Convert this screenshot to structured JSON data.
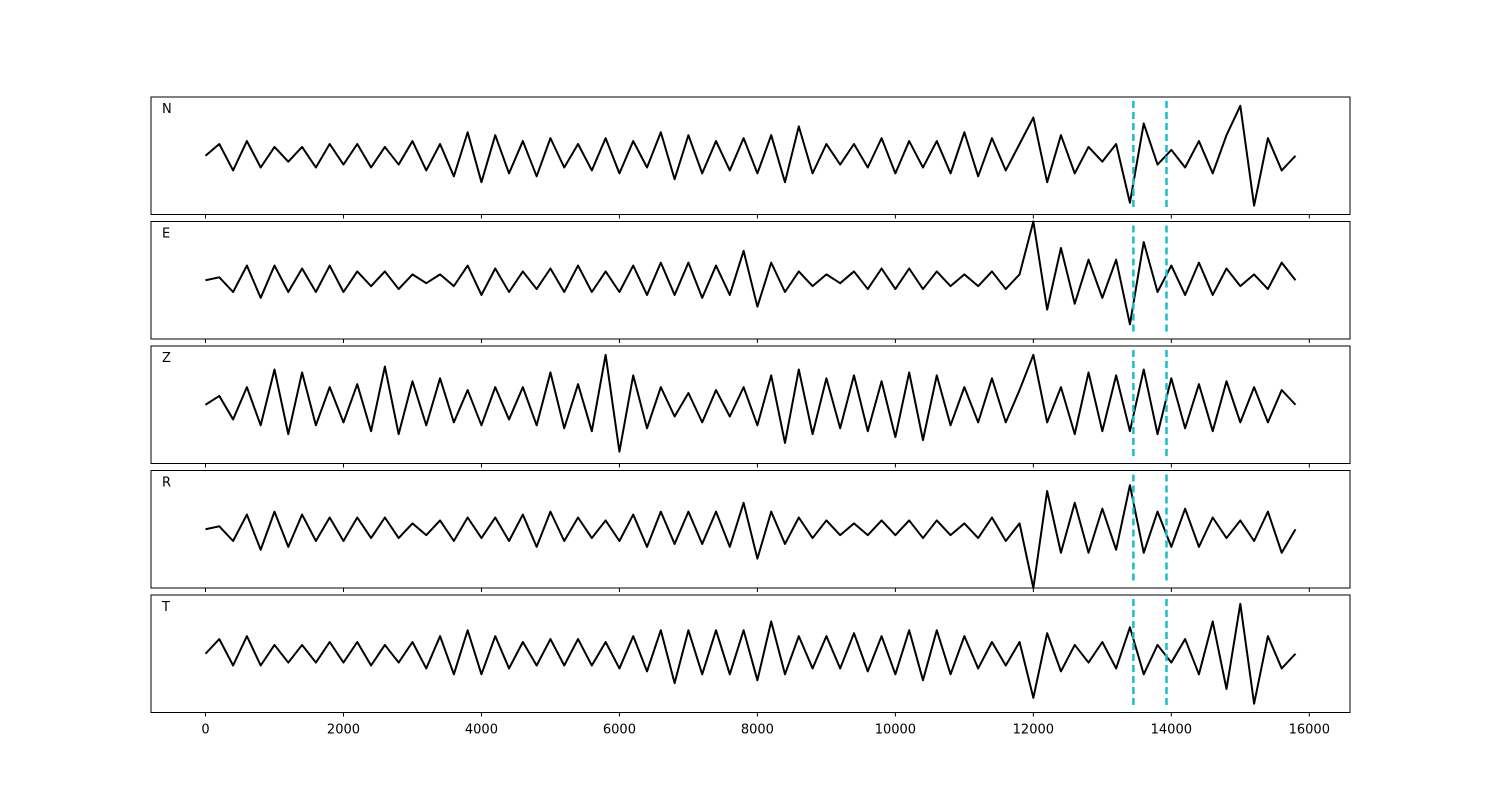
{
  "chart_data": {
    "type": "line",
    "layout": "stacked",
    "x": [
      0,
      200,
      400,
      600,
      800,
      1000,
      1200,
      1400,
      1600,
      1800,
      2000,
      2200,
      2400,
      2600,
      2800,
      3000,
      3200,
      3400,
      3600,
      3800,
      4000,
      4200,
      4400,
      4600,
      4800,
      5000,
      5200,
      5400,
      5600,
      5800,
      6000,
      6200,
      6400,
      6600,
      6800,
      7000,
      7200,
      7400,
      7600,
      7800,
      8000,
      8200,
      8400,
      8600,
      8800,
      9000,
      9200,
      9400,
      9600,
      9800,
      10000,
      10200,
      10400,
      10600,
      10800,
      11000,
      11200,
      11400,
      11600,
      11800,
      12000,
      12200,
      12400,
      12600,
      12800,
      13000,
      13200,
      13400,
      13600,
      13800,
      14000,
      14200,
      14400,
      14600,
      14800,
      15000,
      15200,
      15400,
      15600,
      15800
    ],
    "xlim": [
      -790,
      16590
    ],
    "xticks": [
      0,
      2000,
      4000,
      6000,
      8000,
      10000,
      12000,
      14000,
      16000
    ],
    "ylim": [
      -1,
      1
    ],
    "series": [
      {
        "name": "N",
        "color": "#000000",
        "values": [
          0,
          0.2,
          -0.25,
          0.25,
          -0.2,
          0.15,
          -0.1,
          0.15,
          -0.2,
          0.2,
          -0.15,
          0.2,
          -0.2,
          0.15,
          -0.15,
          0.25,
          -0.25,
          0.2,
          -0.35,
          0.4,
          -0.45,
          0.35,
          -0.3,
          0.25,
          -0.35,
          0.3,
          -0.2,
          0.2,
          -0.25,
          0.3,
          -0.3,
          0.25,
          -0.2,
          0.4,
          -0.4,
          0.35,
          -0.3,
          0.25,
          -0.25,
          0.3,
          -0.3,
          0.35,
          -0.45,
          0.5,
          -0.3,
          0.2,
          -0.15,
          0.2,
          -0.2,
          0.3,
          -0.3,
          0.25,
          -0.2,
          0.25,
          -0.3,
          0.4,
          -0.35,
          0.3,
          -0.25,
          0.2,
          0.65,
          -0.45,
          0.35,
          -0.3,
          0.15,
          -0.1,
          0.2,
          -0.8,
          0.55,
          -0.15,
          0.1,
          -0.2,
          0.25,
          -0.3,
          0.35,
          0.85,
          -0.85,
          0.3,
          -0.25,
          0
        ]
      },
      {
        "name": "E",
        "color": "#000000",
        "values": [
          0,
          0.05,
          -0.2,
          0.25,
          -0.3,
          0.25,
          -0.2,
          0.2,
          -0.2,
          0.25,
          -0.2,
          0.15,
          -0.1,
          0.15,
          -0.15,
          0.1,
          -0.05,
          0.1,
          -0.1,
          0.25,
          -0.25,
          0.2,
          -0.2,
          0.15,
          -0.15,
          0.2,
          -0.2,
          0.25,
          -0.2,
          0.15,
          -0.2,
          0.25,
          -0.25,
          0.3,
          -0.25,
          0.3,
          -0.3,
          0.25,
          -0.25,
          0.5,
          -0.45,
          0.3,
          -0.2,
          0.15,
          -0.1,
          0.1,
          -0.05,
          0.15,
          -0.15,
          0.2,
          -0.15,
          0.2,
          -0.15,
          0.15,
          -0.1,
          0.1,
          -0.1,
          0.15,
          -0.15,
          0.1,
          1.0,
          -0.5,
          0.55,
          -0.4,
          0.35,
          -0.3,
          0.35,
          -0.75,
          0.65,
          -0.2,
          0.25,
          -0.25,
          0.3,
          -0.25,
          0.2,
          -0.1,
          0.1,
          -0.15,
          0.3,
          0
        ]
      },
      {
        "name": "Z",
        "color": "#000000",
        "values": [
          0,
          0.15,
          -0.25,
          0.3,
          -0.35,
          0.6,
          -0.5,
          0.55,
          -0.35,
          0.3,
          -0.3,
          0.35,
          -0.45,
          0.65,
          -0.5,
          0.4,
          -0.35,
          0.45,
          -0.3,
          0.25,
          -0.35,
          0.3,
          -0.25,
          0.3,
          -0.35,
          0.55,
          -0.4,
          0.35,
          -0.45,
          0.85,
          -0.8,
          0.5,
          -0.4,
          0.3,
          -0.2,
          0.2,
          -0.3,
          0.25,
          -0.2,
          0.3,
          -0.35,
          0.5,
          -0.65,
          0.6,
          -0.5,
          0.45,
          -0.4,
          0.5,
          -0.45,
          0.4,
          -0.55,
          0.55,
          -0.6,
          0.5,
          -0.35,
          0.3,
          -0.3,
          0.45,
          -0.3,
          0.25,
          0.85,
          -0.3,
          0.3,
          -0.5,
          0.55,
          -0.45,
          0.5,
          -0.45,
          0.6,
          -0.5,
          0.45,
          -0.4,
          0.35,
          -0.45,
          0.4,
          -0.3,
          0.3,
          -0.3,
          0.25,
          0
        ]
      },
      {
        "name": "R",
        "color": "#000000",
        "values": [
          0,
          0.05,
          -0.2,
          0.25,
          -0.35,
          0.3,
          -0.3,
          0.25,
          -0.2,
          0.2,
          -0.2,
          0.2,
          -0.15,
          0.2,
          -0.15,
          0.1,
          -0.1,
          0.15,
          -0.2,
          0.2,
          -0.15,
          0.2,
          -0.2,
          0.25,
          -0.3,
          0.3,
          -0.2,
          0.2,
          -0.15,
          0.15,
          -0.2,
          0.25,
          -0.3,
          0.3,
          -0.25,
          0.3,
          -0.25,
          0.3,
          -0.3,
          0.45,
          -0.5,
          0.3,
          -0.25,
          0.2,
          -0.15,
          0.15,
          -0.1,
          0.1,
          -0.1,
          0.15,
          -0.1,
          0.15,
          -0.15,
          0.15,
          -0.1,
          0.1,
          -0.15,
          0.2,
          -0.2,
          0.1,
          -1.0,
          0.65,
          -0.4,
          0.45,
          -0.4,
          0.35,
          -0.35,
          0.75,
          -0.4,
          0.3,
          -0.3,
          0.35,
          -0.3,
          0.2,
          -0.15,
          0.15,
          -0.2,
          0.3,
          -0.4,
          0
        ]
      },
      {
        "name": "T",
        "color": "#000000",
        "values": [
          0,
          0.25,
          -0.2,
          0.3,
          -0.2,
          0.15,
          -0.15,
          0.15,
          -0.15,
          0.2,
          -0.15,
          0.2,
          -0.2,
          0.15,
          -0.15,
          0.2,
          -0.25,
          0.3,
          -0.35,
          0.4,
          -0.35,
          0.3,
          -0.25,
          0.2,
          -0.2,
          0.25,
          -0.2,
          0.25,
          -0.2,
          0.2,
          -0.25,
          0.3,
          -0.3,
          0.4,
          -0.5,
          0.4,
          -0.35,
          0.4,
          -0.35,
          0.4,
          -0.45,
          0.55,
          -0.35,
          0.3,
          -0.25,
          0.3,
          -0.25,
          0.35,
          -0.3,
          0.3,
          -0.35,
          0.4,
          -0.45,
          0.4,
          -0.35,
          0.3,
          -0.25,
          0.2,
          -0.2,
          0.2,
          -0.75,
          0.35,
          -0.3,
          0.15,
          -0.15,
          0.2,
          -0.25,
          0.45,
          -0.35,
          0.15,
          -0.15,
          0.25,
          -0.35,
          0.55,
          -0.6,
          0.85,
          -0.85,
          0.3,
          -0.25,
          0
        ]
      }
    ],
    "vlines": {
      "x": [
        13450,
        13930
      ],
      "color": "#17becf",
      "style": "dashed"
    }
  }
}
